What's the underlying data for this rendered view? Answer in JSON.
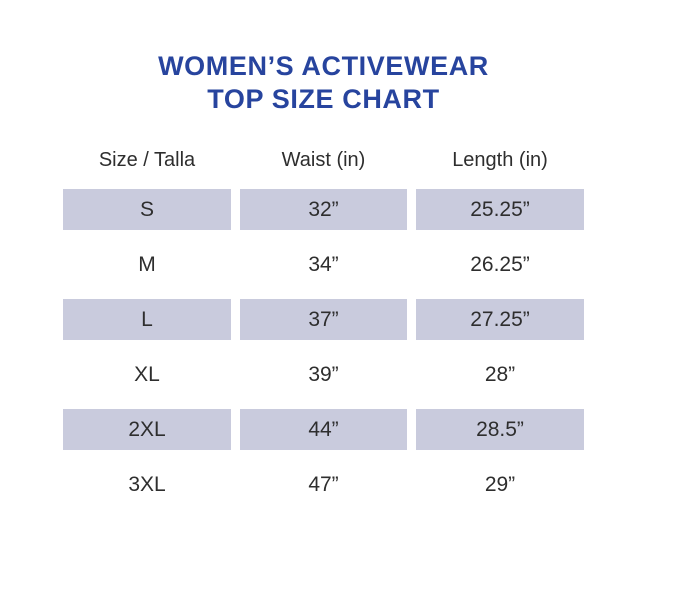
{
  "title": {
    "line1": "WOMEN’S ACTIVEWEAR",
    "line2": "TOP SIZE CHART"
  },
  "colors": {
    "title_blue": "#27449e",
    "row_shade": "#c9cbdd",
    "text": "#2e2e2e",
    "background": "#ffffff"
  },
  "chart_data": {
    "type": "table",
    "title": "WOMEN’S ACTIVEWEAR TOP SIZE CHART",
    "columns": [
      "Size / Talla",
      "Waist (in)",
      "Length (in)"
    ],
    "rows": [
      {
        "size": "S",
        "waist": "32”",
        "length": "25.25”",
        "shaded": true
      },
      {
        "size": "M",
        "waist": "34”",
        "length": "26.25”",
        "shaded": false
      },
      {
        "size": "L",
        "waist": "37”",
        "length": "27.25”",
        "shaded": true
      },
      {
        "size": "XL",
        "waist": "39”",
        "length": "28”",
        "shaded": false
      },
      {
        "size": "2XL",
        "waist": "44”",
        "length": "28.5”",
        "shaded": true
      },
      {
        "size": "3XL",
        "waist": "47”",
        "length": "29”",
        "shaded": false
      }
    ],
    "layout": {
      "shading": "alternating rows starting with first row shaded",
      "alignment": "all cells centered",
      "grid": "off",
      "legend": "none"
    }
  }
}
